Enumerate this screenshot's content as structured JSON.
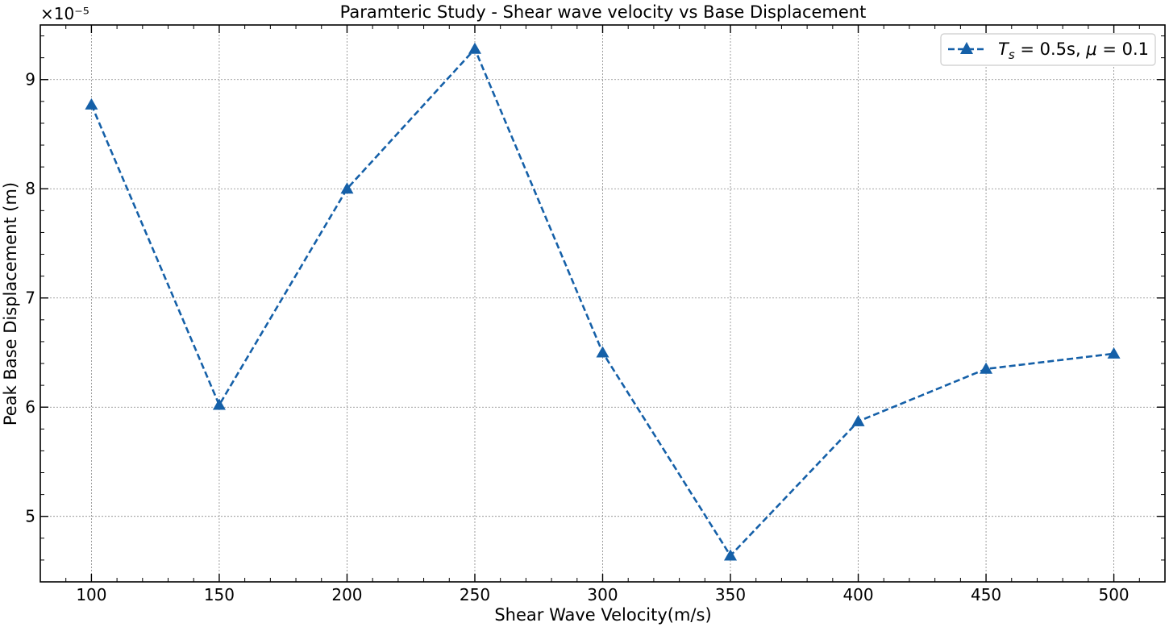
{
  "chart_data": {
    "type": "line",
    "title": "Paramteric Study - Shear wave velocity vs Base Displacement",
    "xlabel": "Shear Wave Velocity(m/s)",
    "ylabel": "Peak Base Displacement (m)",
    "y_offset_text": "×10⁻⁵",
    "x_scale": 1,
    "y_scale": 1e-05,
    "xlim": [
      80,
      520
    ],
    "ylim": [
      4.4e-05,
      9.5e-05
    ],
    "x_ticks": [
      100,
      150,
      200,
      250,
      300,
      350,
      400,
      450,
      500
    ],
    "x_tick_labels": [
      "100",
      "150",
      "200",
      "250",
      "300",
      "350",
      "400",
      "450",
      "500"
    ],
    "y_ticks": [
      5e-05,
      6e-05,
      7e-05,
      8e-05,
      9e-05
    ],
    "y_tick_labels": [
      "5",
      "6",
      "7",
      "8",
      "9"
    ],
    "grid": true,
    "legend_position": "top-right",
    "series": [
      {
        "name": "T_s = 0.5s, μ = 0.1",
        "legend_parts": {
          "sym1": "T",
          "sub1": "s",
          "eq1": " = 0.5s, ",
          "sym2": "μ",
          "eq2": " = 0.1"
        },
        "color": "#1560a8",
        "line_style": "dashed",
        "marker": "triangle-up",
        "x": [
          100,
          150,
          200,
          250,
          300,
          350,
          400,
          450,
          500
        ],
        "y": [
          8.77e-05,
          6.02e-05,
          8e-05,
          9.28e-05,
          6.5e-05,
          4.64e-05,
          5.87e-05,
          6.35e-05,
          6.49e-05
        ]
      }
    ]
  }
}
